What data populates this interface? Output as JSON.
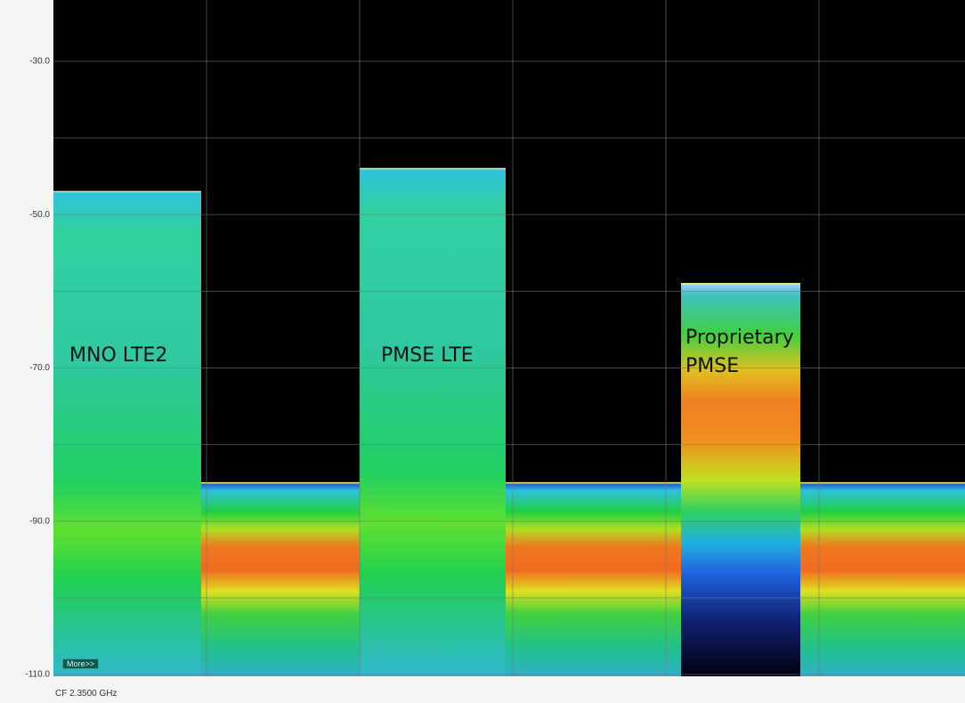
{
  "chart_data": {
    "type": "spectrum",
    "ylim": [
      -110,
      -22
    ],
    "yticks": [
      {
        "value": -30,
        "label": "-30.0"
      },
      {
        "value": -50,
        "label": "-50.0"
      },
      {
        "value": -70,
        "label": "-70.0"
      },
      {
        "value": -90,
        "label": "-90.0"
      },
      {
        "value": -110,
        "label": "-110.0"
      }
    ],
    "yminor": [
      -40,
      -60,
      -80,
      -100
    ],
    "grid": true,
    "noise_floor": -85,
    "signals": [
      {
        "label": "MNO LTE2",
        "level": -47
      },
      {
        "label": "PMSE LTE",
        "level": -44
      },
      {
        "label": "Proprietary PMSE",
        "level": -59
      }
    ],
    "button": "More>>",
    "footer": "CF 2.3500 GHz"
  }
}
